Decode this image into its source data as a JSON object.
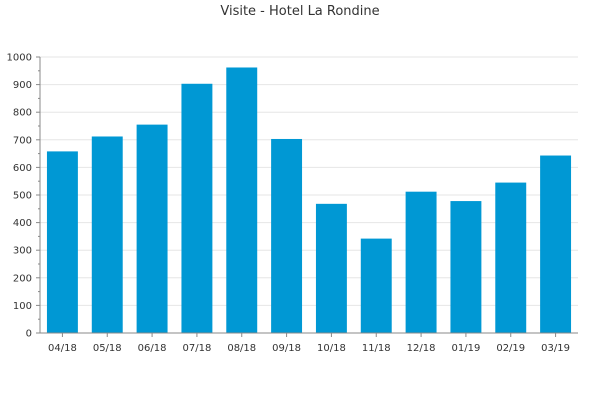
{
  "chart_data": {
    "type": "bar",
    "title": "Visite - Hotel La Rondine",
    "xlabel": "",
    "ylabel": "",
    "categories": [
      "04/18",
      "05/18",
      "06/18",
      "07/18",
      "08/18",
      "09/18",
      "10/18",
      "11/18",
      "12/18",
      "01/19",
      "02/19",
      "03/19"
    ],
    "values": [
      658,
      712,
      755,
      903,
      962,
      703,
      468,
      342,
      512,
      478,
      545,
      643
    ],
    "ylim": [
      0,
      1000
    ],
    "yticks": [
      0,
      100,
      200,
      300,
      400,
      500,
      600,
      700,
      800,
      900,
      1000
    ],
    "grid": true,
    "legend": "none",
    "bar_color": "#0098d4",
    "grid_color": "#e6e6e6",
    "axis_color": "#888888"
  }
}
